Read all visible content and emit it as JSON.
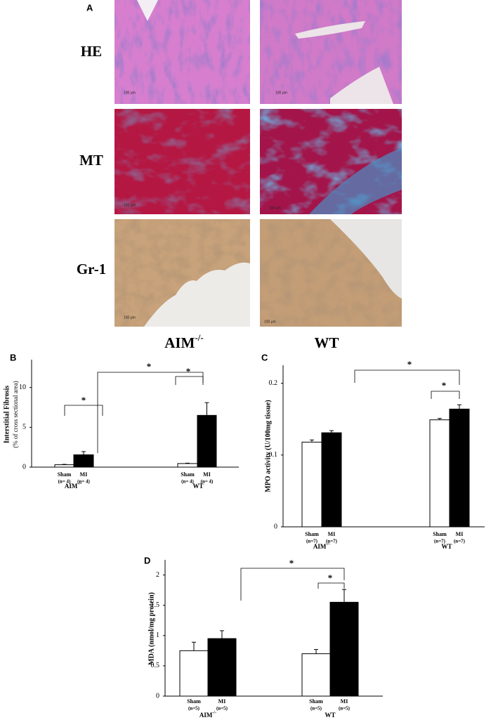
{
  "panel_a": {
    "label": "A",
    "row_labels": [
      "HE",
      "MT",
      "Gr-1"
    ],
    "column_labels": [
      {
        "text": "AIM",
        "sup": "-/-"
      },
      {
        "text": "WT"
      }
    ],
    "scale_label": "100 μm"
  },
  "chart_data": [
    {
      "type": "bar",
      "panel": "B",
      "y_label": [
        "Interstitial Fibrosis",
        "(% of cross sectional area)"
      ],
      "groups": [
        {
          "text": "AIM",
          "sup": "-/-"
        },
        {
          "text": "WT"
        }
      ],
      "categories": [
        "Sham",
        "MI",
        "Sham",
        "MI"
      ],
      "n_labels": [
        "(n= 4)",
        "(n= 4)",
        "(n= 4)",
        "(n= 4)"
      ],
      "values": [
        0.3,
        1.55,
        0.45,
        6.5
      ],
      "errors": [
        0.05,
        0.4,
        0.05,
        1.6
      ],
      "bar_colors": [
        "#ffffff",
        "#000000",
        "#ffffff",
        "#000000"
      ],
      "ylim": [
        0,
        13.5
      ],
      "yticks": [
        0,
        5,
        10
      ],
      "annotations": [
        "*",
        "*",
        "*"
      ]
    },
    {
      "type": "bar",
      "panel": "C",
      "y_label": [
        "MPO activity (U/100mg tissue)"
      ],
      "groups": [
        {
          "text": "AIM",
          "sup": "-/-"
        },
        {
          "text": "WT"
        }
      ],
      "categories": [
        "Sham",
        "MI",
        "Sham",
        "MI"
      ],
      "n_labels": [
        "(n=7)",
        "(n=7)",
        "(n=7)",
        "(n=7)"
      ],
      "values": [
        0.118,
        0.131,
        0.149,
        0.164
      ],
      "errors": [
        0.003,
        0.003,
        0.002,
        0.006
      ],
      "bar_colors": [
        "#ffffff",
        "#000000",
        "#ffffff",
        "#000000"
      ],
      "ylim": [
        0,
        0.225
      ],
      "yticks": [
        0,
        0.1,
        0.2
      ],
      "annotations": [
        "*",
        "*"
      ]
    },
    {
      "type": "bar",
      "panel": "D",
      "y_label": [
        "MDA (nmol/mg protein)"
      ],
      "groups": [
        {
          "text": "AIM",
          "sup": "-/-"
        },
        {
          "text": "WT"
        }
      ],
      "categories": [
        "Sham",
        "MI",
        "Sham",
        "MI"
      ],
      "n_labels": [
        "(n=5)",
        "(n=5)",
        "(n=5)",
        "(n=5)"
      ],
      "values": [
        0.75,
        0.95,
        0.7,
        1.55
      ],
      "errors": [
        0.14,
        0.13,
        0.07,
        0.21
      ],
      "bar_colors": [
        "#ffffff",
        "#000000",
        "#ffffff",
        "#000000"
      ],
      "ylim": [
        0,
        2.25
      ],
      "yticks": [
        0,
        0.5,
        1,
        1.5,
        2
      ],
      "annotations": [
        "*",
        "*"
      ]
    }
  ]
}
